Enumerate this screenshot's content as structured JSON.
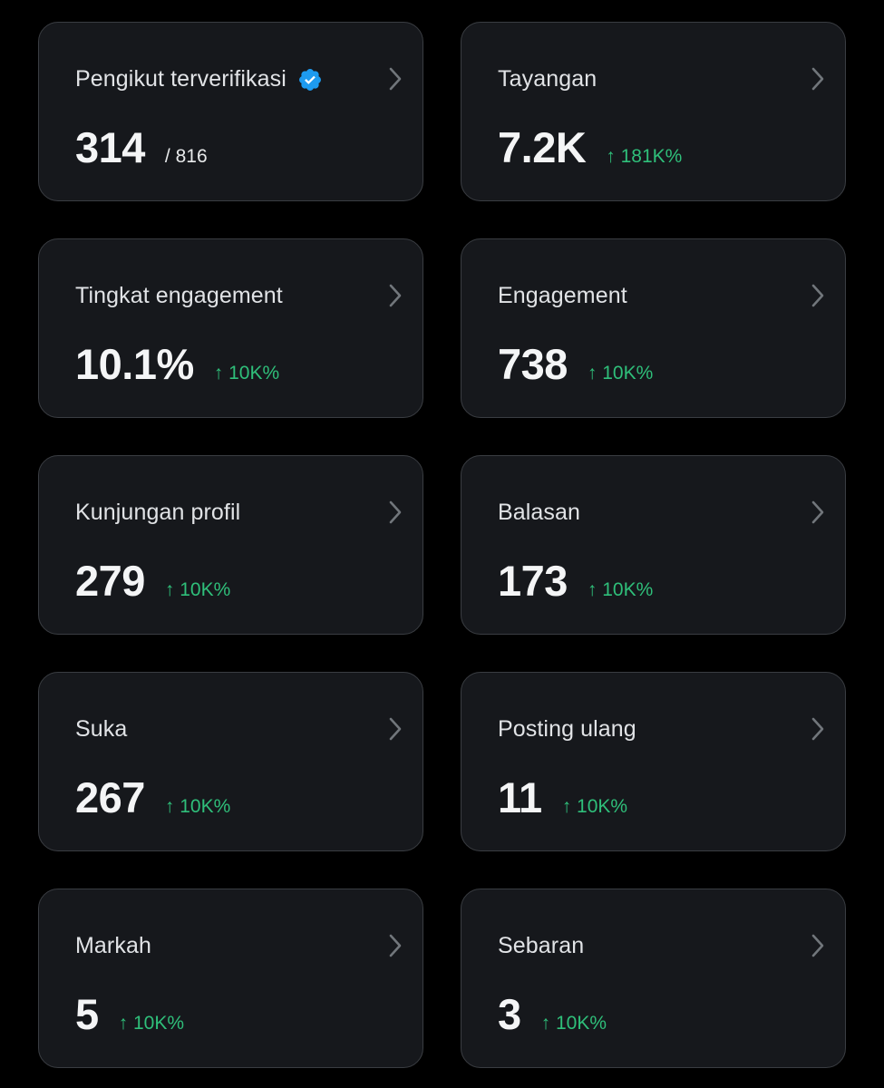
{
  "cards": [
    {
      "title": "Pengikut terverifikasi",
      "value": "314",
      "sub": "/ 816",
      "sub_kind": "denominator",
      "verified": true
    },
    {
      "title": "Tayangan",
      "value": "7.2K",
      "sub": "↑ 181K%",
      "sub_kind": "change"
    },
    {
      "title": "Tingkat engagement",
      "value": "10.1%",
      "sub": "↑ 10K%",
      "sub_kind": "change"
    },
    {
      "title": "Engagement",
      "value": "738",
      "sub": "↑ 10K%",
      "sub_kind": "change"
    },
    {
      "title": "Kunjungan profil",
      "value": "279",
      "sub": "↑ 10K%",
      "sub_kind": "change"
    },
    {
      "title": "Balasan",
      "value": "173",
      "sub": "↑ 10K%",
      "sub_kind": "change"
    },
    {
      "title": "Suka",
      "value": "267",
      "sub": "↑ 10K%",
      "sub_kind": "change"
    },
    {
      "title": "Posting ulang",
      "value": "11",
      "sub": "↑ 10K%",
      "sub_kind": "change"
    },
    {
      "title": "Markah",
      "value": "5",
      "sub": "↑ 10K%",
      "sub_kind": "change"
    },
    {
      "title": "Sebaran",
      "value": "3",
      "sub": "↑ 10K%",
      "sub_kind": "change"
    }
  ],
  "icons": {
    "verified": "verified-badge-icon",
    "chevron": "chevron-right-icon"
  },
  "colors": {
    "background": "#000000",
    "card_background": "#16181c",
    "card_border": "#3a3d42",
    "positive_change": "#2fbf7a",
    "verified_badge": "#1d9bf0"
  }
}
